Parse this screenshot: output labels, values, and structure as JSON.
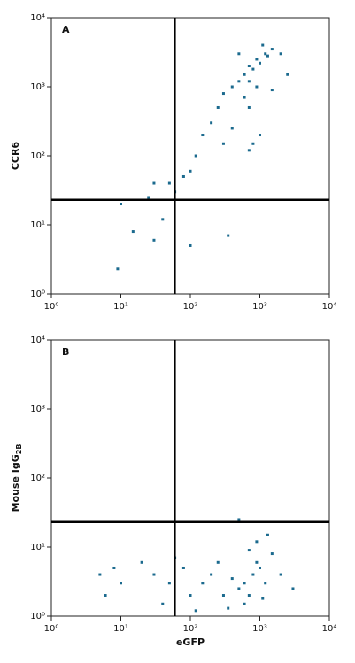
{
  "chart_data": [
    {
      "type": "scatter",
      "label": "A",
      "ylabel": {
        "text": "CCR6"
      },
      "xscale": "log",
      "yscale": "log",
      "xlim": [
        1,
        10000
      ],
      "ylim": [
        1,
        10000
      ],
      "xticks": [
        {
          "value": 1,
          "label": "10⁰"
        },
        {
          "value": 10,
          "label": "10¹"
        },
        {
          "value": 100,
          "label": "10²"
        },
        {
          "value": 1000,
          "label": "10³"
        },
        {
          "value": 10000,
          "label": "10⁴"
        }
      ],
      "yticks": [
        {
          "value": 1,
          "label": "10⁰"
        },
        {
          "value": 10,
          "label": "10¹"
        },
        {
          "value": 100,
          "label": "10²"
        },
        {
          "value": 1000,
          "label": "10³"
        },
        {
          "value": 10000,
          "label": "10⁴"
        }
      ],
      "quadrant": {
        "x": 60,
        "y": 23
      },
      "color": "#1b6a8e",
      "x": [
        1200,
        900,
        700,
        600,
        1500,
        1000,
        800,
        500,
        400,
        1300,
        1100,
        2000,
        300,
        700,
        900,
        600,
        250,
        200,
        150,
        800,
        700,
        1000,
        400,
        300,
        120,
        100,
        80,
        50,
        30,
        60,
        25,
        10,
        40,
        15,
        30,
        9,
        350,
        100,
        700,
        1500,
        500,
        2500
      ],
      "values": [
        3000,
        2500,
        2000,
        1500,
        3500,
        2200,
        1800,
        1200,
        1000,
        2800,
        4000,
        3000,
        800,
        1200,
        1000,
        700,
        500,
        300,
        200,
        150,
        120,
        200,
        250,
        150,
        100,
        60,
        50,
        40,
        40,
        30,
        25,
        20,
        12,
        8,
        6,
        2.3,
        7,
        5,
        500,
        900,
        3000,
        1500
      ]
    },
    {
      "type": "scatter",
      "label": "B",
      "ylabel": {
        "text": "Mouse IgG",
        "subscript": "2B"
      },
      "xlabel": "eGFP",
      "xscale": "log",
      "yscale": "log",
      "xlim": [
        1,
        10000
      ],
      "ylim": [
        1,
        10000
      ],
      "xticks": [
        {
          "value": 1,
          "label": "10⁰"
        },
        {
          "value": 10,
          "label": "10¹"
        },
        {
          "value": 100,
          "label": "10²"
        },
        {
          "value": 1000,
          "label": "10³"
        },
        {
          "value": 10000,
          "label": "10⁴"
        }
      ],
      "yticks": [
        {
          "value": 1,
          "label": "10⁰"
        },
        {
          "value": 10,
          "label": "10¹"
        },
        {
          "value": 100,
          "label": "10²"
        },
        {
          "value": 1000,
          "label": "10³"
        },
        {
          "value": 10000,
          "label": "10⁴"
        }
      ],
      "quadrant": {
        "x": 60,
        "y": 23
      },
      "color": "#1b6a8e",
      "x": [
        600,
        800,
        500,
        1000,
        700,
        400,
        900,
        300,
        1200,
        600,
        200,
        1500,
        350,
        250,
        700,
        1100,
        2000,
        150,
        100,
        80,
        50,
        30,
        20,
        10,
        8,
        5,
        6,
        40,
        60,
        120,
        900,
        500,
        1300,
        3000
      ],
      "values": [
        3,
        4,
        2.5,
        5,
        2,
        3.5,
        6,
        2,
        3,
        1.5,
        4,
        8,
        1.3,
        6,
        9,
        1.8,
        4,
        3,
        2,
        5,
        3,
        4,
        6,
        3,
        5,
        4,
        2,
        1.5,
        7,
        1.2,
        12,
        25,
        15,
        2.5
      ]
    }
  ]
}
